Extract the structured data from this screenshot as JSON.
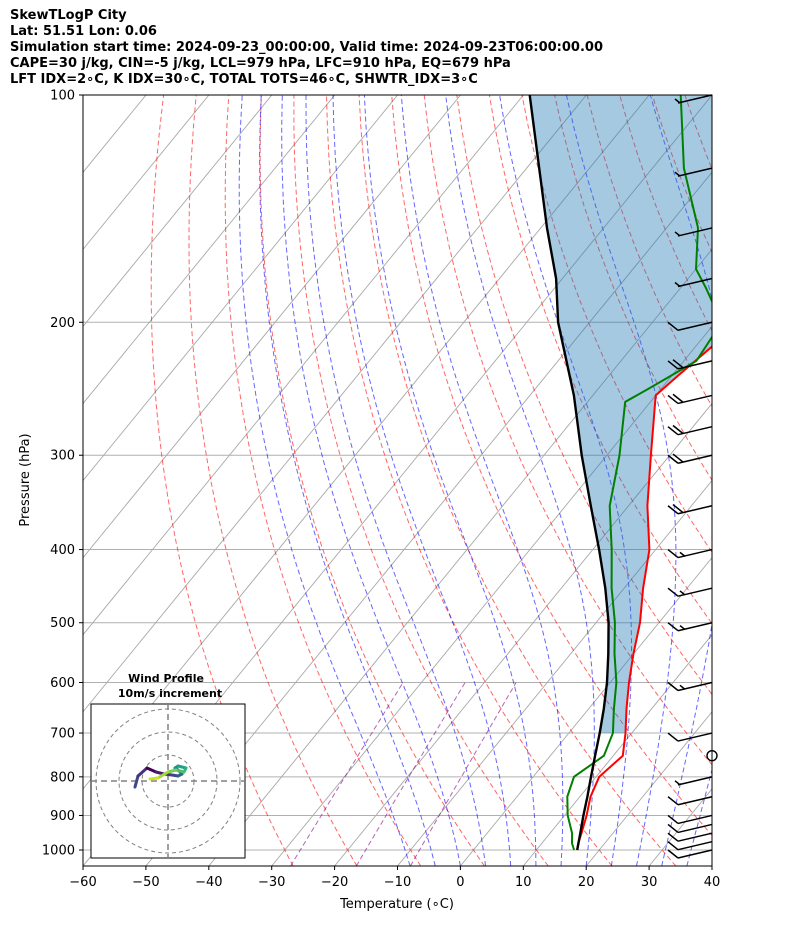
{
  "header": {
    "line1": "SkewTLogP City",
    "line2": "Lat: 51.51   Lon: 0.06",
    "line3": "Simulation start time: 2024-09-23_00:00:00, Valid time: 2024-09-23T06:00:00.00",
    "line4": "CAPE=30 j/kg, CIN=-5 j/kg, LCL=979 hPa, LFC=910 hPa, EQ=679 hPa",
    "line5": "LFT IDX=2∘C, K IDX=30∘C, TOTAL TOTS=46∘C, SHWTR_IDX=3∘C"
  },
  "colors": {
    "temperature": "#ff0000",
    "dewpoint": "#008000",
    "parcel": "#000000",
    "cape_fill": "#1f77b4",
    "dry_adiabat": "#ff0000",
    "moist_adiabat": "#0000ff",
    "mixing_ratio": "#800080",
    "isotherm": "#808080"
  },
  "chart_data": {
    "type": "line",
    "title": "",
    "xlabel": "Temperature (∘C)",
    "ylabel": "Pressure (hPa)",
    "xlim": [
      -60,
      40
    ],
    "ylim": [
      1050,
      100
    ],
    "y_scale": "log",
    "grid": true,
    "x_ticks": [
      "−60",
      "−50",
      "−40",
      "−30",
      "−20",
      "−10",
      "0",
      "10",
      "20",
      "30",
      "40"
    ],
    "y_ticks": [
      "100",
      "200",
      "300",
      "400",
      "500",
      "600",
      "700",
      "800",
      "900",
      "1000"
    ],
    "series": [
      {
        "name": "Temperature",
        "pressure_hPa": [
          1000,
          980,
          950,
          900,
          850,
          800,
          750,
          700,
          650,
          600,
          550,
          500,
          450,
          400,
          350,
          300,
          250,
          235,
          200,
          175,
          150,
          125,
          112,
          100
        ],
        "temperature_C": [
          16.5,
          15.8,
          15,
          13.5,
          11.7,
          10.5,
          11.5,
          9,
          6,
          3,
          0,
          -3,
          -7,
          -11,
          -17,
          -23,
          -30,
          -29,
          -26,
          -28,
          -32,
          -37,
          -39,
          -41
        ]
      },
      {
        "name": "Dewpoint",
        "pressure_hPa": [
          1000,
          980,
          950,
          900,
          850,
          800,
          750,
          700,
          650,
          600,
          550,
          500,
          450,
          400,
          350,
          300,
          255,
          245,
          225,
          200,
          180,
          170,
          150,
          125,
          100
        ],
        "temperature_C": [
          16,
          14.8,
          13.5,
          10.5,
          8,
          6.5,
          8.5,
          7,
          4,
          1,
          -3,
          -7,
          -12,
          -17,
          -23,
          -28,
          -34,
          -32,
          -28,
          -29,
          -36,
          -40,
          -45,
          -55,
          -65
        ]
      },
      {
        "name": "Parcel",
        "pressure_hPa": [
          1000,
          950,
          900,
          850,
          800,
          750,
          700,
          650,
          600,
          550,
          500,
          450,
          400,
          350,
          300,
          250,
          200,
          175,
          150,
          125,
          100
        ],
        "temperature_C": [
          16.5,
          14.8,
          13,
          11.2,
          9.2,
          7.1,
          4.9,
          2.4,
          -0.5,
          -4,
          -8,
          -13,
          -19,
          -26,
          -34,
          -43,
          -55,
          -61,
          -69,
          -78,
          -89
        ]
      }
    ],
    "cape_shading": "between Parcel and Temperature curves",
    "wind_barbs": [
      {
        "pressure_hPa": 1000,
        "speed_kt": 10
      },
      {
        "pressure_hPa": 975,
        "speed_kt": 10
      },
      {
        "pressure_hPa": 950,
        "speed_kt": 10
      },
      {
        "pressure_hPa": 925,
        "speed_kt": 10
      },
      {
        "pressure_hPa": 900,
        "speed_kt": 10
      },
      {
        "pressure_hPa": 850,
        "speed_kt": 10
      },
      {
        "pressure_hPa": 800,
        "speed_kt": 5
      },
      {
        "pressure_hPa": 750,
        "speed_kt": 0
      },
      {
        "pressure_hPa": 700,
        "speed_kt": 10
      },
      {
        "pressure_hPa": 600,
        "speed_kt": 15
      },
      {
        "pressure_hPa": 500,
        "speed_kt": 15
      },
      {
        "pressure_hPa": 450,
        "speed_kt": 15
      },
      {
        "pressure_hPa": 400,
        "speed_kt": 15
      },
      {
        "pressure_hPa": 350,
        "speed_kt": 20
      },
      {
        "pressure_hPa": 300,
        "speed_kt": 20
      },
      {
        "pressure_hPa": 275,
        "speed_kt": 20
      },
      {
        "pressure_hPa": 250,
        "speed_kt": 20
      },
      {
        "pressure_hPa": 225,
        "speed_kt": 20
      },
      {
        "pressure_hPa": 200,
        "speed_kt": 10
      },
      {
        "pressure_hPa": 175,
        "speed_kt": 5
      },
      {
        "pressure_hPa": 150,
        "speed_kt": 5
      },
      {
        "pressure_hPa": 125,
        "speed_kt": 5
      },
      {
        "pressure_hPa": 100,
        "speed_kt": 5
      }
    ],
    "inset": {
      "title_line1": "Wind Profile",
      "title_line2": "10m/s increment",
      "type": "hodograph"
    }
  }
}
